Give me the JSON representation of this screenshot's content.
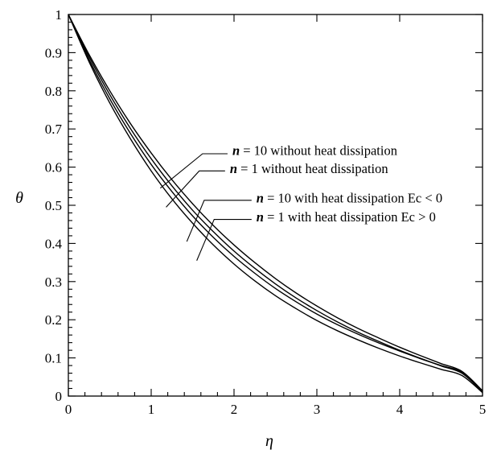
{
  "chart_data": {
    "type": "line",
    "title": "",
    "xlabel": "η",
    "ylabel": "θ",
    "xlim": [
      0,
      5
    ],
    "ylim": [
      0,
      1
    ],
    "x_ticks": [
      "0",
      "1",
      "2",
      "3",
      "4",
      "5"
    ],
    "y_ticks": [
      "0",
      "0.1",
      "0.2",
      "0.3",
      "0.4",
      "0.5",
      "0.6",
      "0.7",
      "0.8",
      "0.9",
      "1"
    ],
    "grid": false,
    "legend": "none (curves labeled with callout annotations)",
    "x": [
      0,
      0.25,
      0.5,
      0.75,
      1,
      1.25,
      1.5,
      1.75,
      2,
      2.25,
      2.5,
      2.75,
      3,
      3.25,
      3.5,
      3.75,
      4,
      4.25,
      4.5,
      4.75,
      5
    ],
    "series": [
      {
        "id": "s1",
        "values": [
          1,
          0.895,
          0.8,
          0.714,
          0.637,
          0.567,
          0.504,
          0.447,
          0.396,
          0.35,
          0.308,
          0.27,
          0.236,
          0.205,
          0.177,
          0.152,
          0.128,
          0.106,
          0.085,
          0.065,
          0.014
        ]
      },
      {
        "id": "s2",
        "values": [
          1,
          0.889,
          0.79,
          0.701,
          0.622,
          0.551,
          0.487,
          0.431,
          0.38,
          0.335,
          0.294,
          0.257,
          0.224,
          0.194,
          0.167,
          0.143,
          0.12,
          0.099,
          0.079,
          0.06,
          0.012
        ]
      },
      {
        "id": "s3",
        "values": [
          1,
          0.882,
          0.779,
          0.688,
          0.607,
          0.536,
          0.472,
          0.416,
          0.366,
          0.322,
          0.282,
          0.247,
          0.215,
          0.187,
          0.162,
          0.139,
          0.118,
          0.098,
          0.08,
          0.062,
          0.01
        ]
      },
      {
        "id": "s4",
        "values": [
          1,
          0.876,
          0.768,
          0.674,
          0.59,
          0.517,
          0.453,
          0.396,
          0.346,
          0.302,
          0.263,
          0.229,
          0.198,
          0.171,
          0.147,
          0.125,
          0.105,
          0.087,
          0.07,
          0.054,
          0.009
        ]
      }
    ],
    "annotations": [
      {
        "var": "n",
        "text": " = 10 without heat dissipation",
        "label_x": 1.98,
        "label_y": 0.642,
        "elbow_x": 1.62,
        "elbow_y": 0.635,
        "point_x": 1.11,
        "point_y": 0.545
      },
      {
        "var": "n",
        "text": " = 1 without heat dissipation",
        "label_x": 1.95,
        "label_y": 0.595,
        "elbow_x": 1.58,
        "elbow_y": 0.59,
        "point_x": 1.18,
        "point_y": 0.495
      },
      {
        "var": "n",
        "text": " = 10 with heat dissipation Ec < 0",
        "label_x": 2.27,
        "label_y": 0.518,
        "elbow_x": 1.64,
        "elbow_y": 0.513,
        "point_x": 1.43,
        "point_y": 0.405
      },
      {
        "var": "n",
        "text": " = 1 with heat dissipation Ec > 0",
        "label_x": 2.27,
        "label_y": 0.468,
        "elbow_x": 1.76,
        "elbow_y": 0.463,
        "point_x": 1.55,
        "point_y": 0.355
      }
    ]
  }
}
